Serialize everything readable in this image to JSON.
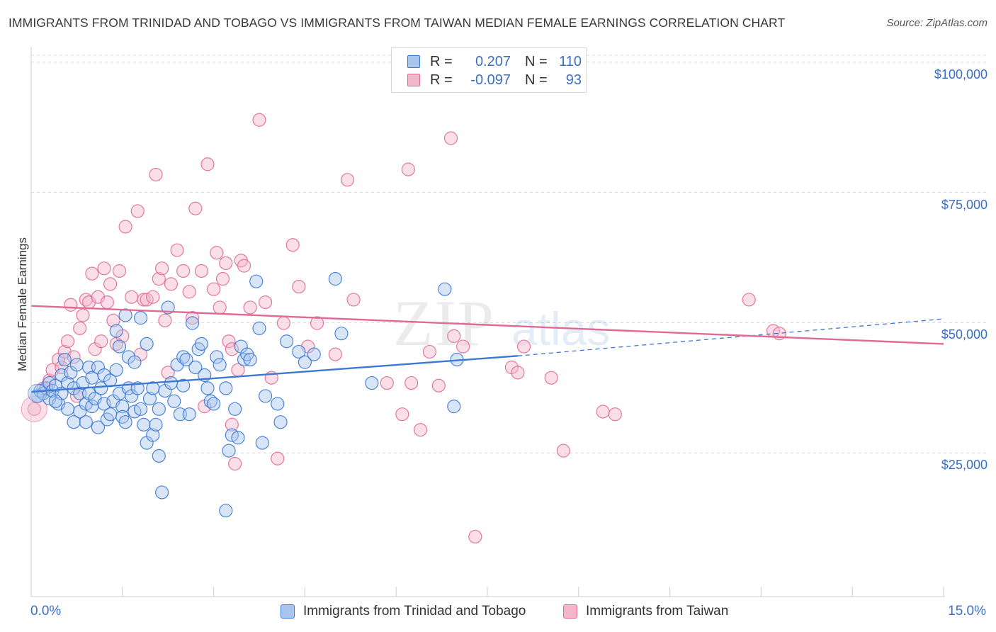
{
  "title": "IMMIGRANTS FROM TRINIDAD AND TOBAGO VS IMMIGRANTS FROM TAIWAN MEDIAN FEMALE EARNINGS CORRELATION CHART",
  "source": "Source: ZipAtlas.com",
  "watermark": {
    "zip": "ZIP",
    "atlas": "atlas"
  },
  "legend": {
    "rows": [
      {
        "r_label": "R =",
        "r_value": "0.207",
        "n_label": "N =",
        "n_value": "110"
      },
      {
        "r_label": "R =",
        "r_value": "-0.097",
        "n_label": "N =",
        "n_value": "93"
      }
    ]
  },
  "chart_data": {
    "type": "scatter",
    "title": "IMMIGRANTS FROM TRINIDAD AND TOBAGO VS IMMIGRANTS FROM TAIWAN MEDIAN FEMALE EARNINGS CORRELATION CHART",
    "xlabel": "",
    "ylabel": "Median Female Earnings",
    "xlim": [
      0,
      15
    ],
    "ylim": [
      0,
      105000
    ],
    "x_tick_labels": [
      "0.0%",
      "15.0%"
    ],
    "y_ticks": [
      25000,
      50000,
      75000,
      100000
    ],
    "y_tick_labels": [
      "$25,000",
      "$50,000",
      "$75,000",
      "$100,000"
    ],
    "grid": "horizontal dashed",
    "legend_position": "top-center",
    "colors": {
      "blue": "#3b78d4",
      "blue_fill": "#a9c5ee",
      "pink": "#e06a96",
      "pink_fill": "#f4b6cb"
    },
    "series": [
      {
        "name": "Immigrants from Trinidad and Tobago",
        "color": "#3b78d4",
        "r": 0.207,
        "n": 110,
        "trend": {
          "x0": 0.0,
          "y0": 39300,
          "x1": 8.0,
          "y1": 46200,
          "dash_x1": 15.0,
          "dash_y1": 53300
        },
        "points": [
          [
            0.1,
            38500
          ],
          [
            0.15,
            39500
          ],
          [
            0.2,
            39000
          ],
          [
            0.25,
            40000
          ],
          [
            0.3,
            41000
          ],
          [
            0.3,
            38000
          ],
          [
            0.35,
            39500
          ],
          [
            0.4,
            40500
          ],
          [
            0.45,
            37000
          ],
          [
            0.5,
            42500
          ],
          [
            0.5,
            39000
          ],
          [
            0.55,
            45500
          ],
          [
            0.6,
            36000
          ],
          [
            0.6,
            41000
          ],
          [
            0.65,
            43000
          ],
          [
            0.7,
            40000
          ],
          [
            0.75,
            44500
          ],
          [
            0.8,
            39000
          ],
          [
            0.8,
            35500
          ],
          [
            0.85,
            41000
          ],
          [
            0.9,
            37000
          ],
          [
            0.9,
            33500
          ],
          [
            0.95,
            44000
          ],
          [
            0.95,
            39000
          ],
          [
            1.0,
            42000
          ],
          [
            1.0,
            36500
          ],
          [
            1.05,
            38000
          ],
          [
            1.1,
            32500
          ],
          [
            1.1,
            44000
          ],
          [
            1.15,
            40000
          ],
          [
            1.2,
            37000
          ],
          [
            1.2,
            42500
          ],
          [
            1.25,
            34000
          ],
          [
            1.3,
            35000
          ],
          [
            1.3,
            41500
          ],
          [
            1.35,
            37500
          ],
          [
            1.4,
            43500
          ],
          [
            1.4,
            51000
          ],
          [
            1.45,
            39000
          ],
          [
            1.5,
            36500
          ],
          [
            1.5,
            34500
          ],
          [
            1.55,
            54000
          ],
          [
            1.55,
            33500
          ],
          [
            1.6,
            40000
          ],
          [
            1.6,
            46000
          ],
          [
            1.65,
            38500
          ],
          [
            1.7,
            35500
          ],
          [
            1.7,
            45000
          ],
          [
            1.75,
            40000
          ],
          [
            1.8,
            36000
          ],
          [
            1.8,
            53500
          ],
          [
            1.85,
            33000
          ],
          [
            1.9,
            48500
          ],
          [
            1.9,
            29500
          ],
          [
            1.95,
            38000
          ],
          [
            2.0,
            40000
          ],
          [
            2.0,
            31000
          ],
          [
            2.05,
            33000
          ],
          [
            2.1,
            27000
          ],
          [
            2.1,
            36000
          ],
          [
            2.15,
            20000
          ],
          [
            2.2,
            39500
          ],
          [
            2.25,
            55500
          ],
          [
            2.3,
            41000
          ],
          [
            2.4,
            44500
          ],
          [
            2.45,
            35000
          ],
          [
            2.5,
            40500
          ],
          [
            2.5,
            46000
          ],
          [
            2.55,
            45500
          ],
          [
            2.6,
            35000
          ],
          [
            2.65,
            52500
          ],
          [
            2.7,
            44000
          ],
          [
            2.75,
            47500
          ],
          [
            2.8,
            48500
          ],
          [
            2.9,
            40000
          ],
          [
            2.95,
            37500
          ],
          [
            3.05,
            46000
          ],
          [
            3.1,
            44500
          ],
          [
            3.2,
            40000
          ],
          [
            3.3,
            31000
          ],
          [
            3.35,
            36000
          ],
          [
            3.4,
            30500
          ],
          [
            3.45,
            48000
          ],
          [
            3.5,
            45500
          ],
          [
            3.55,
            46500
          ],
          [
            3.6,
            45500
          ],
          [
            3.7,
            60500
          ],
          [
            3.75,
            51500
          ],
          [
            3.8,
            29500
          ],
          [
            3.85,
            38500
          ],
          [
            4.05,
            37000
          ],
          [
            4.1,
            33500
          ],
          [
            4.2,
            49000
          ],
          [
            4.4,
            47000
          ],
          [
            4.5,
            45000
          ],
          [
            4.65,
            46500
          ],
          [
            5.0,
            61000
          ],
          [
            5.1,
            50500
          ],
          [
            5.6,
            41000
          ],
          [
            6.8,
            59000
          ],
          [
            6.95,
            36500
          ],
          [
            7.0,
            45500
          ],
          [
            3.2,
            16500
          ],
          [
            3.25,
            28000
          ],
          [
            2.85,
            42500
          ],
          [
            1.45,
            48000
          ],
          [
            0.7,
            33500
          ],
          [
            3.0,
            37000
          ],
          [
            2.35,
            37500
          ],
          [
            0.4,
            37500
          ]
        ]
      },
      {
        "name": "Immigrants from Taiwan",
        "color": "#e06a96",
        "r": -0.097,
        "n": 93,
        "trend": {
          "x0": 0.0,
          "y0": 55800,
          "x1": 15.0,
          "y1": 48500
        },
        "points": [
          [
            0.05,
            36000
          ],
          [
            0.2,
            40000
          ],
          [
            0.3,
            41500
          ],
          [
            0.35,
            43500
          ],
          [
            0.45,
            45500
          ],
          [
            0.5,
            44000
          ],
          [
            0.55,
            47000
          ],
          [
            0.6,
            49000
          ],
          [
            0.65,
            56000
          ],
          [
            0.7,
            46000
          ],
          [
            0.8,
            51500
          ],
          [
            0.85,
            54000
          ],
          [
            0.9,
            57000
          ],
          [
            0.95,
            56500
          ],
          [
            1.0,
            62000
          ],
          [
            1.05,
            47500
          ],
          [
            1.1,
            57500
          ],
          [
            1.15,
            49000
          ],
          [
            1.2,
            63000
          ],
          [
            1.25,
            56500
          ],
          [
            1.3,
            60000
          ],
          [
            1.35,
            53000
          ],
          [
            1.4,
            48500
          ],
          [
            1.45,
            62500
          ],
          [
            1.5,
            50000
          ],
          [
            1.55,
            71000
          ],
          [
            1.65,
            57500
          ],
          [
            1.75,
            74000
          ],
          [
            1.85,
            57000
          ],
          [
            1.9,
            57000
          ],
          [
            2.05,
            81000
          ],
          [
            2.1,
            61000
          ],
          [
            2.15,
            63000
          ],
          [
            2.2,
            53000
          ],
          [
            2.25,
            43000
          ],
          [
            2.3,
            60000
          ],
          [
            2.4,
            66500
          ],
          [
            2.5,
            62500
          ],
          [
            2.6,
            58500
          ],
          [
            2.65,
            53500
          ],
          [
            2.7,
            74500
          ],
          [
            2.8,
            62500
          ],
          [
            2.85,
            36500
          ],
          [
            2.9,
            83000
          ],
          [
            3.0,
            59000
          ],
          [
            3.05,
            66000
          ],
          [
            3.1,
            55500
          ],
          [
            3.15,
            61000
          ],
          [
            3.25,
            49000
          ],
          [
            3.3,
            47500
          ],
          [
            3.4,
            43500
          ],
          [
            3.45,
            64500
          ],
          [
            3.5,
            63500
          ],
          [
            3.6,
            55500
          ],
          [
            3.75,
            91500
          ],
          [
            3.85,
            56500
          ],
          [
            3.95,
            42000
          ],
          [
            4.05,
            26500
          ],
          [
            4.15,
            52500
          ],
          [
            4.3,
            67500
          ],
          [
            4.4,
            59500
          ],
          [
            4.55,
            48000
          ],
          [
            4.7,
            52500
          ],
          [
            5.2,
            80000
          ],
          [
            5.3,
            57000
          ],
          [
            5.85,
            41000
          ],
          [
            6.1,
            35000
          ],
          [
            6.2,
            82000
          ],
          [
            6.25,
            41000
          ],
          [
            6.4,
            32000
          ],
          [
            6.55,
            47000
          ],
          [
            6.7,
            40500
          ],
          [
            6.9,
            88000
          ],
          [
            7.1,
            48000
          ],
          [
            7.3,
            11500
          ],
          [
            7.9,
            44000
          ],
          [
            8.0,
            43000
          ],
          [
            8.1,
            48000
          ],
          [
            8.55,
            42000
          ],
          [
            8.75,
            28000
          ],
          [
            9.4,
            35500
          ],
          [
            9.6,
            35000
          ],
          [
            11.8,
            57000
          ],
          [
            12.2,
            51000
          ],
          [
            12.3,
            50500
          ],
          [
            1.8,
            46500
          ],
          [
            2.0,
            57500
          ],
          [
            0.75,
            38500
          ],
          [
            3.2,
            64000
          ],
          [
            5.0,
            46500
          ],
          [
            6.95,
            50000
          ],
          [
            3.3,
            33000
          ],
          [
            3.35,
            25500
          ]
        ]
      }
    ]
  },
  "bottom_legend": [
    {
      "label": "Immigrants from Trinidad and Tobago"
    },
    {
      "label": "Immigrants from Taiwan"
    }
  ]
}
